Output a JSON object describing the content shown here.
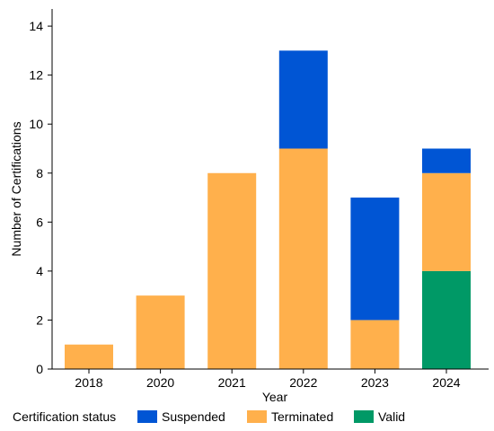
{
  "chart_data": {
    "type": "bar",
    "stacked": true,
    "categories": [
      "2018",
      "2020",
      "2021",
      "2022",
      "2023",
      "2024"
    ],
    "series": [
      {
        "name": "Valid",
        "color": "#009966",
        "values": [
          0,
          0,
          0,
          0,
          0,
          4
        ]
      },
      {
        "name": "Terminated",
        "color": "#FFB04C",
        "values": [
          1,
          3,
          8,
          9,
          2,
          4
        ]
      },
      {
        "name": "Suspended",
        "color": "#0055D4",
        "values": [
          0,
          0,
          0,
          4,
          5,
          1
        ]
      }
    ],
    "legend_order": [
      "Suspended",
      "Terminated",
      "Valid"
    ],
    "legend_title": "Certification status",
    "legend_position": "bottom",
    "title": "",
    "xlabel": "Year",
    "ylabel": "Number of Certifications",
    "ylim": [
      0,
      14.7
    ],
    "yticks": [
      0,
      2,
      4,
      6,
      8,
      10,
      12,
      14
    ],
    "grid": false
  }
}
